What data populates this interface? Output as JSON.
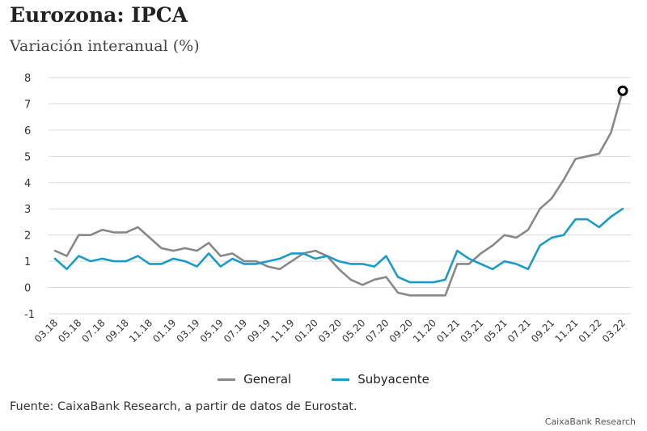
{
  "header": {
    "title": "Eurozona: IPCA",
    "subtitle": "Variación interanual (%)"
  },
  "footer": {
    "source": "Fuente: CaixaBank Research, a partir de datos de Eurostat.",
    "credit": "CaixaBank Research"
  },
  "colors": {
    "general": "#888888",
    "subyacente": "#1a9bc8",
    "grid": "#d9d9d9",
    "marker": "#000000"
  },
  "chart_data": {
    "type": "line",
    "ylim": [
      -1,
      8
    ],
    "yticks": [
      -1,
      0,
      1,
      2,
      3,
      4,
      5,
      6,
      7,
      8
    ],
    "grid": true,
    "legend_position": "bottom-center",
    "x": [
      "03.18",
      "04.18",
      "05.18",
      "06.18",
      "07.18",
      "08.18",
      "09.18",
      "10.18",
      "11.18",
      "12.18",
      "01.19",
      "02.19",
      "03.19",
      "04.19",
      "05.19",
      "06.19",
      "07.19",
      "08.19",
      "09.19",
      "10.19",
      "11.19",
      "12.19",
      "01.20",
      "02.20",
      "03.20",
      "04.20",
      "05.20",
      "06.20",
      "07.20",
      "08.20",
      "09.20",
      "10.20",
      "11.20",
      "12.20",
      "01.21",
      "02.21",
      "03.21",
      "04.21",
      "05.21",
      "06.21",
      "07.21",
      "08.21",
      "09.21",
      "10.21",
      "11.21",
      "12.21",
      "01.22",
      "02.22",
      "03.22"
    ],
    "x_tick_labels": [
      "03.18",
      "05.18",
      "07.18",
      "09.18",
      "11.18",
      "01.19",
      "03.19",
      "05.19",
      "07.19",
      "09.19",
      "11.19",
      "01.20",
      "03.20",
      "05.20",
      "07.20",
      "09.20",
      "11.20",
      "01.21",
      "03.21",
      "05.21",
      "07.21",
      "09.21",
      "11.21",
      "01.22",
      "03.22"
    ],
    "series": [
      {
        "name": "General",
        "values": [
          1.4,
          1.2,
          2.0,
          2.0,
          2.2,
          2.1,
          2.1,
          2.3,
          1.9,
          1.5,
          1.4,
          1.5,
          1.4,
          1.7,
          1.2,
          1.3,
          1.0,
          1.0,
          0.8,
          0.7,
          1.0,
          1.3,
          1.4,
          1.2,
          0.7,
          0.3,
          0.1,
          0.3,
          0.4,
          -0.2,
          -0.3,
          -0.3,
          -0.3,
          -0.3,
          0.9,
          0.9,
          1.3,
          1.6,
          2.0,
          1.9,
          2.2,
          3.0,
          3.4,
          4.1,
          4.9,
          5.0,
          5.1,
          5.9,
          7.5
        ]
      },
      {
        "name": "Subyacente",
        "values": [
          1.1,
          0.7,
          1.2,
          1.0,
          1.1,
          1.0,
          1.0,
          1.2,
          0.9,
          0.9,
          1.1,
          1.0,
          0.8,
          1.3,
          0.8,
          1.1,
          0.9,
          0.9,
          1.0,
          1.1,
          1.3,
          1.3,
          1.1,
          1.2,
          1.0,
          0.9,
          0.9,
          0.8,
          1.2,
          0.4,
          0.2,
          0.2,
          0.2,
          0.3,
          1.4,
          1.1,
          0.9,
          0.7,
          1.0,
          0.9,
          0.7,
          1.6,
          1.9,
          2.0,
          2.6,
          2.6,
          2.3,
          2.7,
          3.0
        ]
      }
    ],
    "highlight": {
      "series": "General",
      "x": "03.22",
      "y": 7.5
    }
  }
}
